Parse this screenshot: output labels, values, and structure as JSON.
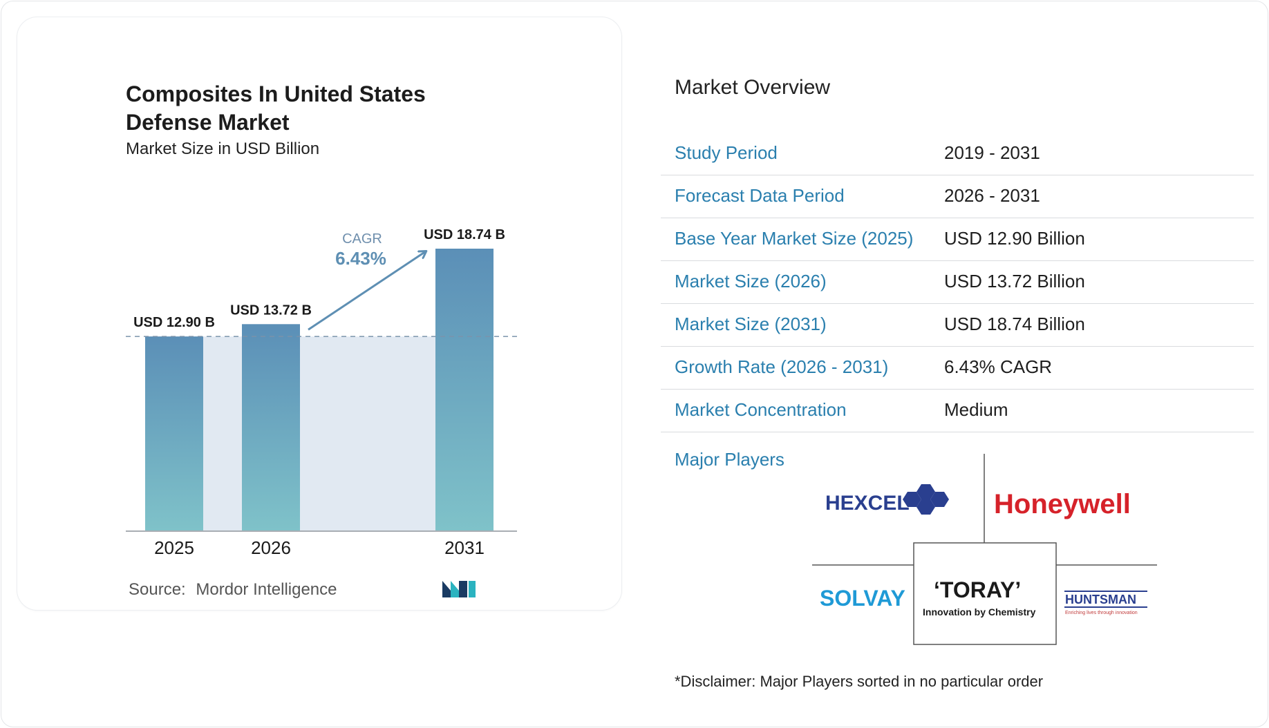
{
  "chart": {
    "title": "Composites In United States Defense Market",
    "subtitle": "Market Size in USD Billion",
    "source_label": "Source:",
    "source_name": "Mordor Intelligence",
    "cagr_label": "CAGR",
    "cagr_value": "6.43%"
  },
  "chart_data": {
    "type": "bar",
    "title": "Composites In United States Defense Market",
    "subtitle": "Market Size in USD Billion",
    "categories": [
      "2025",
      "2026",
      "2031"
    ],
    "values": [
      12.9,
      13.72,
      18.74
    ],
    "data_labels": [
      "USD 12.90 B",
      "USD 13.72 B",
      "USD 18.74 B"
    ],
    "annotation": {
      "label": "CAGR",
      "value": "6.43%"
    },
    "ylim": [
      0,
      18.74
    ],
    "grid": false,
    "colors": {
      "bar_top": "#5b8fb7",
      "bar_bottom": "#7fc2c9",
      "band": "#e1e9f2",
      "arrow": "#5e8fb3"
    }
  },
  "overview": {
    "title": "Market Overview",
    "rows": [
      {
        "label": "Study Period",
        "value": "2019 - 2031"
      },
      {
        "label": "Forecast Data Period",
        "value": "2026 - 2031"
      },
      {
        "label": "Base Year Market Size (2025)",
        "value": "USD 12.90 Billion"
      },
      {
        "label": "Market Size (2026)",
        "value": "USD 13.72 Billion"
      },
      {
        "label": "Market Size (2031)",
        "value": "USD 18.74 Billion"
      },
      {
        "label": "Growth Rate (2026 - 2031)",
        "value": "6.43% CAGR"
      },
      {
        "label": "Market Concentration",
        "value": "Medium"
      }
    ]
  },
  "players": {
    "title": "Major Players",
    "logos": {
      "hexcel": "HEXCEL",
      "honeywell": "Honeywell",
      "solvay": "SOLVAY",
      "toray": "‘TORAY’",
      "toray_tagline": "Innovation by Chemistry",
      "huntsman": "HUNTSMAN",
      "huntsman_tagline": "Enriching lives through innovation"
    },
    "colors": {
      "hexcel": "#2a3f8f",
      "honeywell": "#d6222a",
      "solvay": "#1f9ad6",
      "toray": "#1a1a1a",
      "huntsman": "#2a3f8f"
    }
  },
  "disclaimer": "*Disclaimer: Major Players sorted in no particular order"
}
